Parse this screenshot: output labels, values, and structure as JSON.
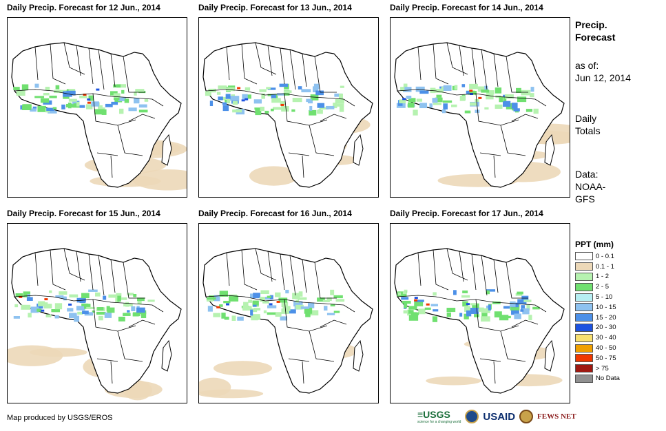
{
  "panels": [
    {
      "title": "Daily Precip. Forecast for 12 Jun., 2014"
    },
    {
      "title": "Daily Precip. Forecast for 13 Jun., 2014"
    },
    {
      "title": "Daily Precip. Forecast for 14 Jun., 2014"
    },
    {
      "title": "Daily Precip. Forecast for 15 Jun., 2014"
    },
    {
      "title": "Daily Precip. Forecast for 16 Jun., 2014"
    },
    {
      "title": "Daily Precip. Forecast for 17 Jun., 2014"
    }
  ],
  "side": {
    "title_line1": "Precip.",
    "title_line2": "Forecast",
    "asof_label": "as of:",
    "asof_date": "Jun 12, 2014",
    "totals_line1": "Daily",
    "totals_line2": "Totals",
    "data_line1": "Data:",
    "data_line2": "NOAA-",
    "data_line3": "GFS"
  },
  "legend": {
    "title": "PPT (mm)",
    "items": [
      {
        "label": "0 - 0.1",
        "color": "#ffffff"
      },
      {
        "label": "0.1 - 1",
        "color": "#ecd8b8"
      },
      {
        "label": "1 - 2",
        "color": "#b6f2b0"
      },
      {
        "label": "2 - 5",
        "color": "#70e070"
      },
      {
        "label": "5 - 10",
        "color": "#b6eef2"
      },
      {
        "label": "10 - 15",
        "color": "#8ec2f0"
      },
      {
        "label": "15 - 20",
        "color": "#4c90e8"
      },
      {
        "label": "20 - 30",
        "color": "#1c52e0"
      },
      {
        "label": "30 - 40",
        "color": "#f8e070"
      },
      {
        "label": "40 - 50",
        "color": "#f0a000"
      },
      {
        "label": "50 - 75",
        "color": "#f03800"
      },
      {
        "label": "> 75",
        "color": "#a01810"
      },
      {
        "label": "No Data",
        "color": "#909090"
      }
    ]
  },
  "footer": {
    "credit": "Map produced by USGS/EROS",
    "logo_usgs": "≡USGS",
    "logo_usgs_tagline": "science for a changing world",
    "logo_usaid": "USAID",
    "logo_fews": "FEWS NET"
  }
}
